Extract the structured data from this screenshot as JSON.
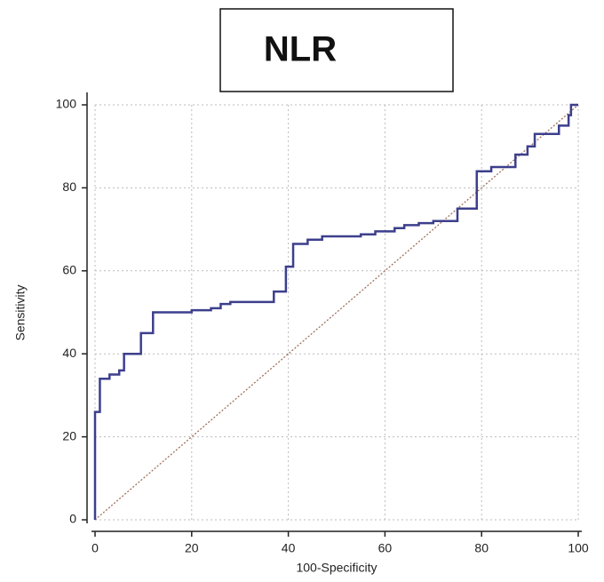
{
  "chart_data": {
    "type": "line",
    "title": "NLR",
    "x_label": "100-Specificity",
    "y_label": "Sensitivity",
    "xlim": [
      0,
      100
    ],
    "ylim": [
      0,
      100
    ],
    "xticks": [
      0,
      20,
      40,
      60,
      80,
      100
    ],
    "yticks": [
      0,
      20,
      40,
      60,
      80,
      100
    ],
    "grid": true,
    "series": [
      {
        "color": "#3c3f8c",
        "dash": false,
        "x": [
          0,
          0,
          1,
          1,
          3,
          3,
          5,
          5,
          6,
          6,
          9.5,
          9.5,
          12,
          12,
          20,
          20,
          24,
          24,
          26,
          26,
          28,
          28,
          37,
          37,
          39.5,
          39.5,
          41,
          41,
          44,
          44,
          47,
          47,
          55,
          55,
          58,
          58,
          62,
          62,
          64,
          64,
          67,
          67,
          70,
          70,
          75,
          75,
          79,
          79,
          82,
          82,
          87,
          87,
          89.5,
          89.5,
          91,
          91,
          96,
          96,
          98,
          98,
          98.5,
          98.5,
          100
        ],
        "values": [
          0,
          26,
          26,
          34,
          34,
          35,
          35,
          36,
          36,
          40,
          40,
          45,
          45,
          50,
          50,
          50.5,
          50.5,
          51,
          51,
          52,
          52,
          52.5,
          52.5,
          55,
          55,
          61,
          61,
          66.5,
          66.5,
          67.5,
          67.5,
          68.3,
          68.3,
          68.8,
          68.8,
          69.5,
          69.5,
          70.3,
          70.3,
          71,
          71,
          71.5,
          71.5,
          72,
          72,
          75,
          75,
          84,
          84,
          85,
          85,
          88,
          88,
          90,
          90,
          93,
          93,
          95,
          95,
          97.5,
          97.5,
          100,
          100
        ]
      },
      {
        "color": "#a0705a",
        "dash": true,
        "x": [
          0,
          100
        ],
        "values": [
          0,
          100
        ]
      }
    ]
  }
}
